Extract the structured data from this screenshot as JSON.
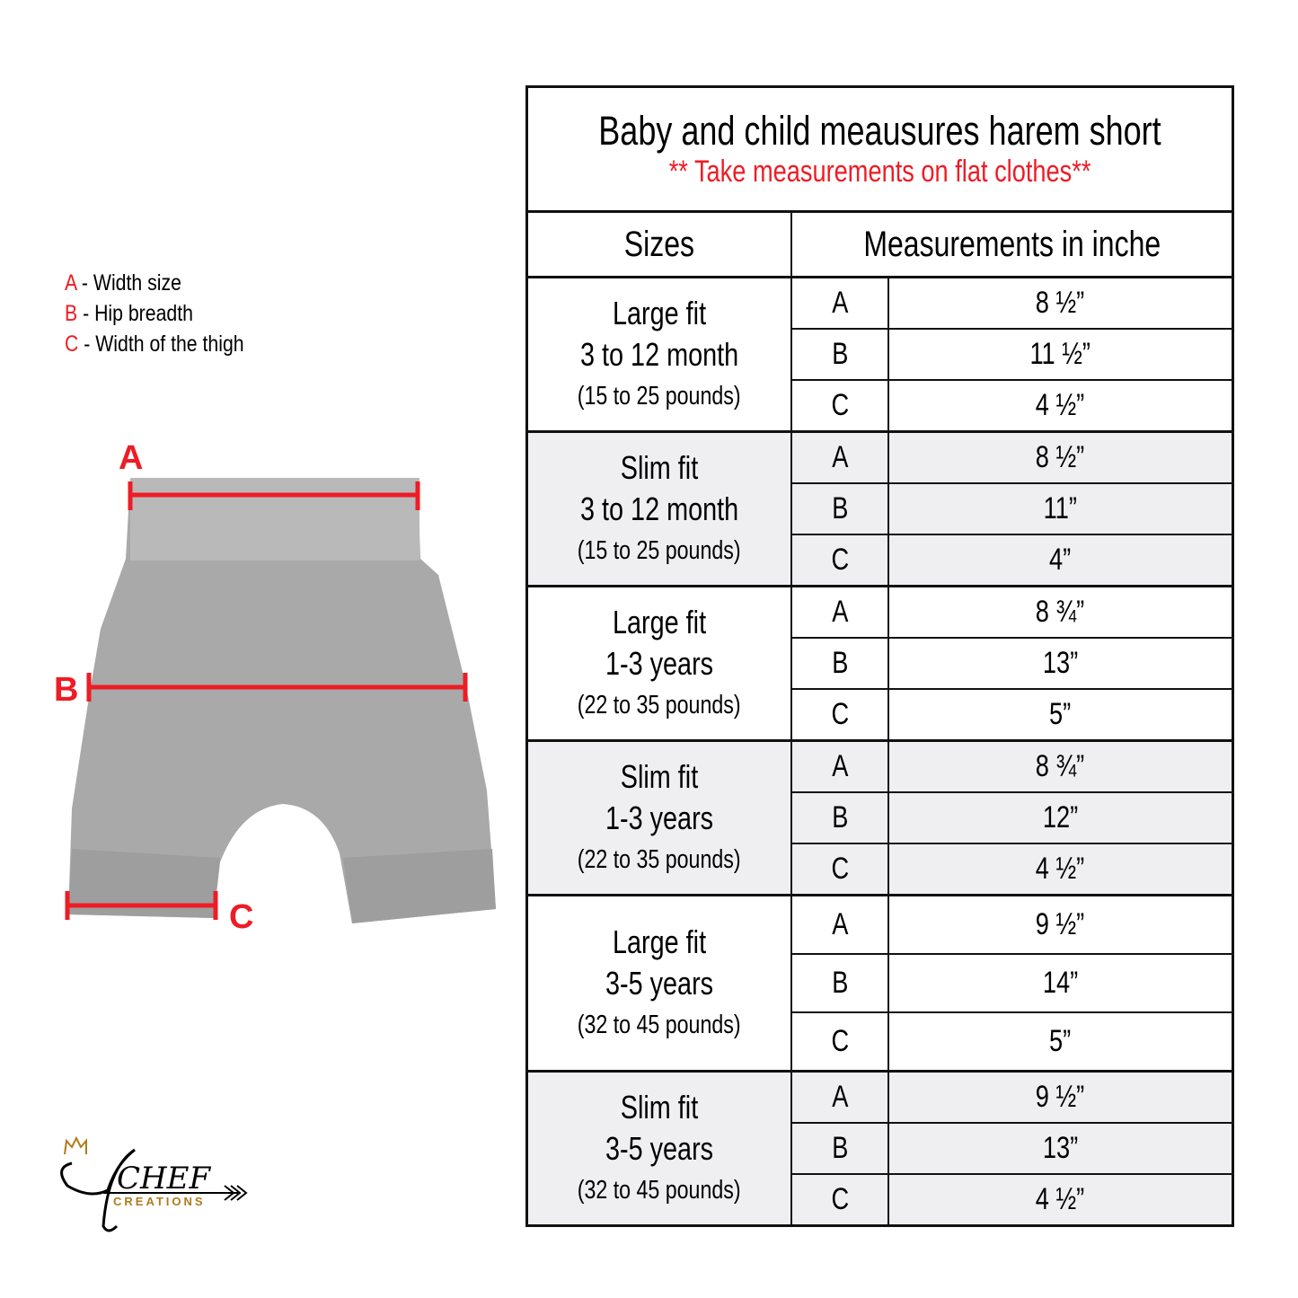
{
  "legend": [
    {
      "key": "A",
      "label": " - Width size"
    },
    {
      "key": "B",
      "label": " - Hip breadth"
    },
    {
      "key": "C",
      "label": " - Width of the thigh"
    }
  ],
  "diagram": {
    "labels": {
      "a": "A",
      "b": "B",
      "c": "C"
    },
    "line_color": "#ee1c25",
    "fabric_color": "#a9a9a9"
  },
  "logo": {
    "text": "CHEF",
    "sub": "CREATIONS"
  },
  "table": {
    "title": "Baby and child meausures harem short",
    "subtitle": "** Take measurements on flat clothes**",
    "header": {
      "sizes": "Sizes",
      "measurements": "Measurements in inche"
    },
    "groups": [
      {
        "fit": "Large fit",
        "age": "3 to 12 month",
        "weight": "(15 to 25 pounds)",
        "rows": [
          {
            "k": "A",
            "v": "8 ½”"
          },
          {
            "k": "B",
            "v": "11 ½”"
          },
          {
            "k": "C",
            "v": "4 ½”"
          }
        ]
      },
      {
        "fit": "Slim fit",
        "age": "3 to 12 month",
        "weight": "(15 to 25 pounds)",
        "rows": [
          {
            "k": "A",
            "v": "8 ½”"
          },
          {
            "k": "B",
            "v": "11”"
          },
          {
            "k": "C",
            "v": "4”"
          }
        ]
      },
      {
        "fit": "Large fit",
        "age": "1-3 years",
        "weight": "(22 to 35 pounds)",
        "rows": [
          {
            "k": "A",
            "v": "8 ¾”"
          },
          {
            "k": "B",
            "v": "13”"
          },
          {
            "k": "C",
            "v": "5”"
          }
        ]
      },
      {
        "fit": "Slim fit",
        "age": "1-3 years",
        "weight": "(22 to 35 pounds)",
        "rows": [
          {
            "k": "A",
            "v": "8 ¾”"
          },
          {
            "k": "B",
            "v": "12”"
          },
          {
            "k": "C",
            "v": "4 ½”"
          }
        ]
      },
      {
        "fit": "Large fit",
        "age": "3-5 years",
        "weight": "(32 to 45 pounds)",
        "rows": [
          {
            "k": "A",
            "v": "9 ½”"
          },
          {
            "k": "B",
            "v": "14”"
          },
          {
            "k": "C",
            "v": "5”"
          }
        ]
      },
      {
        "fit": "Slim fit",
        "age": "3-5 years",
        "weight": "(32 to 45 pounds)",
        "rows": [
          {
            "k": "A",
            "v": "9 ½”"
          },
          {
            "k": "B",
            "v": "13”"
          },
          {
            "k": "C",
            "v": "4 ½”"
          }
        ]
      }
    ]
  }
}
